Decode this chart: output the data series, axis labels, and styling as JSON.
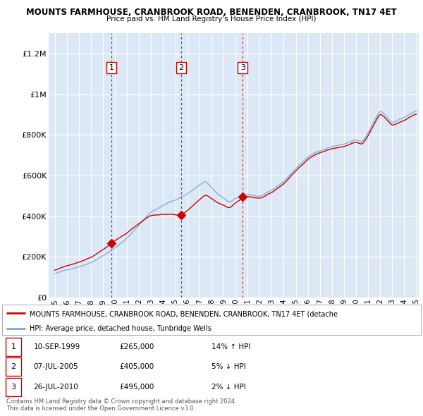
{
  "title": "MOUNTS FARMHOUSE, CRANBROOK ROAD, BENENDEN, CRANBROOK, TN17 4ET",
  "subtitle": "Price paid vs. HM Land Registry's House Price Index (HPI)",
  "hpi_label": "HPI: Average price, detached house, Tunbridge Wells",
  "prop_label": "MOUNTS FARMHOUSE, CRANBROOK ROAD, BENENDEN, CRANBROOK, TN17 4ET (detache",
  "footer1": "Contains HM Land Registry data © Crown copyright and database right 2024.",
  "footer2": "This data is licensed under the Open Government Licence v3.0.",
  "transactions": [
    {
      "num": 1,
      "date": "10-SEP-1999",
      "price": "£265,000",
      "pct": "14%",
      "dir": "↑",
      "rel": "HPI"
    },
    {
      "num": 2,
      "date": "07-JUL-2005",
      "price": "£405,000",
      "pct": "5%",
      "dir": "↓",
      "rel": "HPI"
    },
    {
      "num": 3,
      "date": "26-JUL-2010",
      "price": "£495,000",
      "pct": "2%",
      "dir": "↓",
      "rel": "HPI"
    }
  ],
  "transaction_years": [
    1999.7,
    2005.5,
    2010.6
  ],
  "transaction_prices": [
    265000,
    405000,
    495000
  ],
  "ylim": [
    0,
    1300000
  ],
  "yticks": [
    0,
    200000,
    400000,
    600000,
    800000,
    1000000,
    1200000
  ],
  "xlim_start": 1994.5,
  "xlim_end": 2025.2,
  "prop_color": "#cc0000",
  "hpi_color": "#7aaadd",
  "vline_color": "#cc0000",
  "chart_bg": "#dce8f5",
  "background_color": "#ffffff",
  "grid_color": "#ffffff"
}
